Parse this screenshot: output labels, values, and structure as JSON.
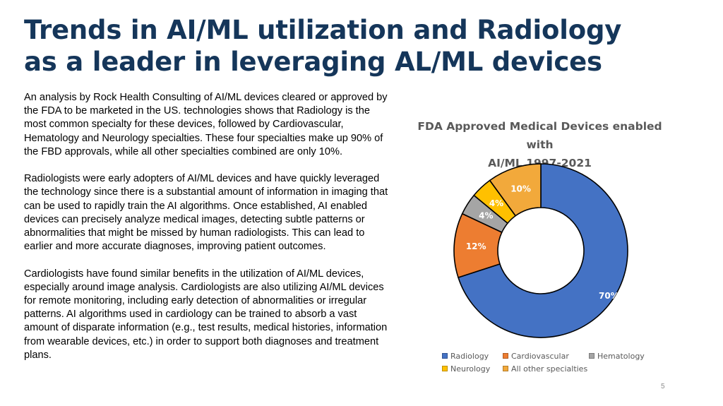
{
  "slide": {
    "title_line1": "Trends in AI/ML utilization and Radiology",
    "title_line2": "as a leader in leveraging AL/ML devices",
    "paragraphs": [
      "An analysis by Rock Health Consulting of AI/ML devices cleared or approved by the FDA to be marketed in the US. technologies shows that Radiology is the most common specialty for these devices, followed by Cardiovascular, Hematology and Neurology specialties. These four specialties make up 90% of the FBD approvals, while all other specialties combined are only 10%.",
      "Radiologists were early adopters of AI/ML devices and have quickly leveraged the technology since there is a substantial amount of information in imaging that can be used to rapidly train the AI algorithms. Once established, AI enabled devices can precisely analyze medical images, detecting subtle patterns or abnormalities that might be missed by human radiologists. This can lead to earlier and more accurate diagnoses, improving patient outcomes.",
      "Cardiologists have found similar benefits in the utilization of AI/ML devices, especially around image analysis. Cardiologists are also utilizing AI/ML devices for remote monitoring, including early detection of abnormalities or irregular patterns. AI algorithms used in cardiology can be trained to absorb a vast amount of disparate information (e.g., test results, medical histories, information from wearable devices, etc.) in order to support both diagnoses and treatment plans."
    ],
    "page_number": "5"
  },
  "chart_data": {
    "type": "pie",
    "variant": "donut",
    "title_line1": "FDA Approved Medical Devices enabled with",
    "title_line2": "AI/ML 1997-2021",
    "categories": [
      "Radiology",
      "Cardiovascular",
      "Hematology",
      "Neurology",
      "All other specialties"
    ],
    "values": [
      70,
      12,
      4,
      4,
      10
    ],
    "labels": [
      "70%",
      "12%",
      "4%",
      "4%",
      "10%"
    ],
    "colors": [
      "#4472c4",
      "#ed7d31",
      "#a5a5a5",
      "#ffc000",
      "#f2a93b"
    ],
    "legend_position": "bottom"
  }
}
